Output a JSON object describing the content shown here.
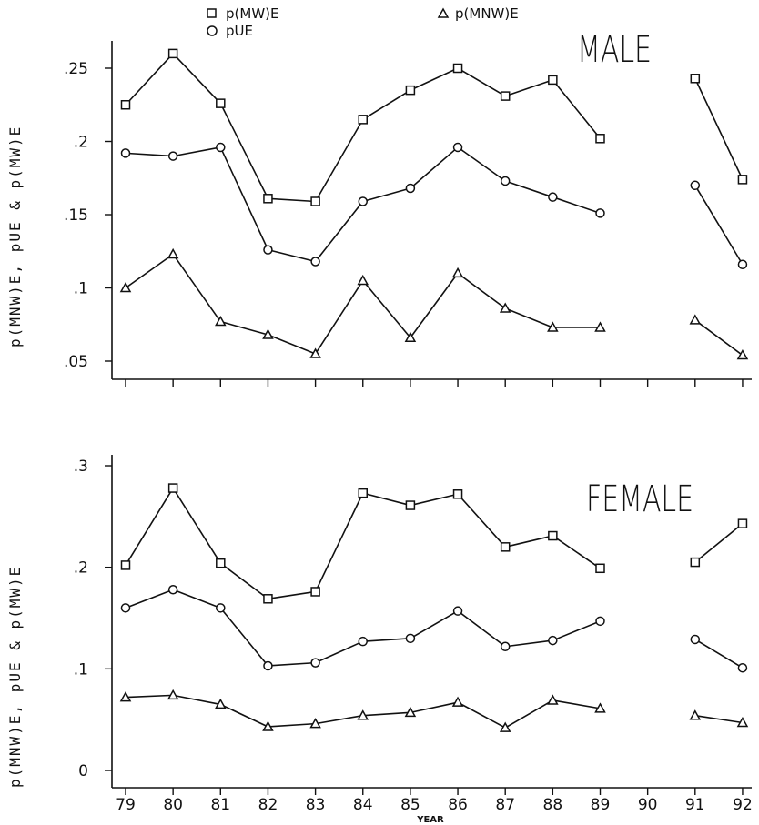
{
  "legend": {
    "items": [
      {
        "label": "p(MW)E",
        "marker": "square"
      },
      {
        "label": "pUE",
        "marker": "circle"
      },
      {
        "label": "p(MNW)E",
        "marker": "triangle"
      }
    ]
  },
  "chart_data": [
    {
      "type": "line",
      "title": "MALE",
      "xlabel": "",
      "ylabel": "p(MNW)E,  pUE  &  p(MW)E",
      "x": [
        79,
        80,
        81,
        82,
        83,
        84,
        85,
        86,
        87,
        88,
        89,
        90,
        91,
        92
      ],
      "xtick_labels": [
        "79",
        "80",
        "81",
        "82",
        "83",
        "84",
        "85",
        "86",
        "87",
        "88",
        "89",
        "90",
        "91",
        "92"
      ],
      "yticks": [
        0.05,
        0.1,
        0.15,
        0.2,
        0.25
      ],
      "ytick_labels": [
        ".05",
        ".1",
        ".15",
        ".2",
        ".25"
      ],
      "ylim": [
        0.045,
        0.265
      ],
      "grid": false,
      "series": [
        {
          "name": "p(MW)E",
          "marker": "square",
          "values": [
            0.225,
            0.26,
            0.226,
            0.161,
            0.159,
            0.215,
            0.235,
            0.25,
            0.231,
            0.242,
            0.202,
            null,
            0.243,
            0.174
          ]
        },
        {
          "name": "pUE",
          "marker": "circle",
          "values": [
            0.192,
            0.19,
            0.196,
            0.126,
            0.118,
            0.159,
            0.168,
            0.196,
            0.173,
            0.162,
            0.151,
            null,
            0.17,
            0.116
          ]
        },
        {
          "name": "p(MNW)E",
          "marker": "triangle",
          "values": [
            0.1,
            0.123,
            0.077,
            0.068,
            0.055,
            0.105,
            0.066,
            0.11,
            0.086,
            0.073,
            0.073,
            null,
            0.078,
            0.054
          ]
        }
      ]
    },
    {
      "type": "line",
      "title": "FEMALE",
      "xlabel": "YEAR",
      "ylabel": "p(MNW)E,  pUE  &  p(MW)E",
      "x": [
        79,
        80,
        81,
        82,
        83,
        84,
        85,
        86,
        87,
        88,
        89,
        90,
        91,
        92
      ],
      "xtick_labels": [
        "79",
        "80",
        "81",
        "82",
        "83",
        "84",
        "85",
        "86",
        "87",
        "88",
        "89",
        "90",
        "91",
        "92"
      ],
      "yticks": [
        0,
        0.1,
        0.2,
        0.3
      ],
      "ytick_labels": [
        "0",
        ".1",
        ".2",
        ".3"
      ],
      "ylim": [
        -0.01,
        0.31
      ],
      "grid": false,
      "series": [
        {
          "name": "p(MW)E",
          "marker": "square",
          "values": [
            0.202,
            0.278,
            0.204,
            0.169,
            0.176,
            0.273,
            0.261,
            0.272,
            0.22,
            0.231,
            0.199,
            null,
            0.205,
            0.243
          ]
        },
        {
          "name": "pUE",
          "marker": "circle",
          "values": [
            0.16,
            0.178,
            0.16,
            0.103,
            0.106,
            0.127,
            0.13,
            0.157,
            0.122,
            0.128,
            0.147,
            null,
            0.129,
            0.101
          ]
        },
        {
          "name": "p(MNW)E",
          "marker": "triangle",
          "values": [
            0.072,
            0.074,
            0.065,
            0.043,
            0.046,
            0.054,
            0.057,
            0.067,
            0.042,
            0.069,
            0.061,
            null,
            0.054,
            0.047
          ]
        }
      ]
    }
  ]
}
